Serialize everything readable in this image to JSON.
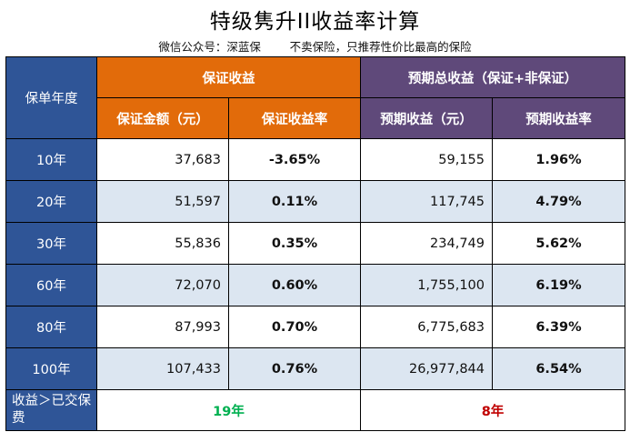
{
  "header": {
    "title": "特级隽升II收益率计算",
    "subtitle": "微信公众号：深蓝保        不卖保险，只推荐性价比最高的保险"
  },
  "table": {
    "year_header": "保单年度",
    "guaranteed_group": "保证收益",
    "expected_group": "预期总收益（保证+非保证）",
    "col_guaranteed_amount": "保证金额（元）",
    "col_guaranteed_rate": "保证收益率",
    "col_expected_amount": "预期收益（元）",
    "col_expected_rate": "预期收益率",
    "rows": [
      {
        "year": "10年",
        "g_amount": "37,683",
        "g_rate": "-3.65%",
        "e_amount": "59,155",
        "e_rate": "1.96%"
      },
      {
        "year": "20年",
        "g_amount": "51,597",
        "g_rate": "0.11%",
        "e_amount": "117,745",
        "e_rate": "4.79%"
      },
      {
        "year": "30年",
        "g_amount": "55,836",
        "g_rate": "0.35%",
        "e_amount": "234,749",
        "e_rate": "5.62%"
      },
      {
        "year": "60年",
        "g_amount": "72,070",
        "g_rate": "0.60%",
        "e_amount": "1,755,100",
        "e_rate": "6.19%"
      },
      {
        "year": "80年",
        "g_amount": "87,993",
        "g_rate": "0.70%",
        "e_amount": "6,775,683",
        "e_rate": "6.39%"
      },
      {
        "year": "100年",
        "g_amount": "107,433",
        "g_rate": "0.76%",
        "e_amount": "26,977,844",
        "e_rate": "6.54%"
      }
    ],
    "footer_label": "收益＞已交保费",
    "footer_guaranteed": "19年",
    "footer_expected": "8年"
  },
  "colors": {
    "year_blue": "#2f5597",
    "orange": "#e26b0a",
    "purple": "#5f497a",
    "row_alt": "#dce6f1",
    "green_text": "#00b050",
    "red_text": "#c00000"
  }
}
